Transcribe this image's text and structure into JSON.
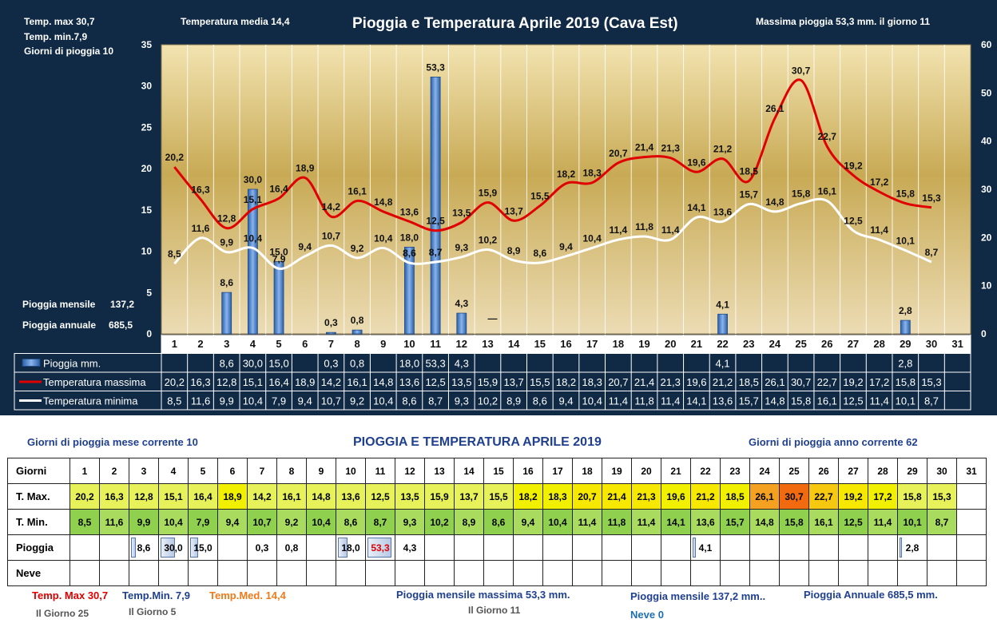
{
  "header": {
    "temp_max": "Temp. max  30,7",
    "temp_min": "Temp.  min.7,9",
    "giorni_pioggia": "Giorni  di pioggia   10",
    "temp_media": "Temperatura media  14,4",
    "title": "Pioggia e Temperatura Aprile 2019 (Cava Est)",
    "massima_pioggia": "Massima pioggia  53,3 mm.  il giorno   11",
    "pioggia_mensile_label": "Pioggia mensile",
    "pioggia_mensile_value": "137,2",
    "pioggia_annuale_label": "Pioggia annuale",
    "pioggia_annuale_value": "685,5"
  },
  "colors": {
    "panel": "#102a45",
    "plot_top": "#f2e3b0",
    "plot_mid": "#c8aa55",
    "plot_bottom": "#ead9b0",
    "tmax_line": "#e00000",
    "tmin_line": "#ffffff",
    "rain_bar": "#4f86d0"
  },
  "chart_data": {
    "type": "bar+line",
    "title": "Pioggia e Temperatura Aprile 2019 (Cava Est)",
    "categories": [
      "1",
      "2",
      "3",
      "4",
      "5",
      "6",
      "7",
      "8",
      "9",
      "10",
      "11",
      "12",
      "13",
      "14",
      "15",
      "16",
      "17",
      "18",
      "19",
      "20",
      "21",
      "22",
      "23",
      "24",
      "25",
      "26",
      "27",
      "28",
      "29",
      "30",
      "31"
    ],
    "y_left": [
      0,
      35
    ],
    "y_left_ticks": [
      "0",
      "5",
      "10",
      "15",
      "20",
      "25",
      "30",
      "35"
    ],
    "y_right": [
      0,
      60
    ],
    "y_right_ticks": [
      "0",
      "10",
      "20",
      "30",
      "40",
      "50",
      "60"
    ],
    "series": [
      {
        "name": "Pioggia mm.",
        "type": "bar",
        "axis": "right",
        "values": [
          null,
          null,
          8.6,
          30.0,
          15.0,
          null,
          0.3,
          0.8,
          null,
          18.0,
          53.3,
          4.3,
          null,
          null,
          null,
          null,
          null,
          null,
          null,
          null,
          null,
          4.1,
          null,
          null,
          null,
          null,
          null,
          null,
          2.8,
          null,
          null
        ],
        "labels": [
          "",
          "",
          "8,6",
          "30,0",
          "15,0",
          "",
          "0,3",
          "0,8",
          "",
          "18,0",
          "53,3",
          "4,3",
          "",
          "",
          "",
          "",
          "",
          "",
          "",
          "",
          "",
          "4,1",
          "",
          "",
          "",
          "",
          "",
          "",
          "2,8",
          "",
          ""
        ]
      },
      {
        "name": "Temperatura massima",
        "type": "line",
        "axis": "left",
        "values": [
          20.2,
          16.3,
          12.8,
          15.1,
          16.4,
          18.9,
          14.2,
          16.1,
          14.8,
          13.6,
          12.5,
          13.5,
          15.9,
          13.7,
          15.5,
          18.2,
          18.3,
          20.7,
          21.4,
          21.3,
          19.6,
          21.2,
          18.5,
          26.1,
          30.7,
          22.7,
          19.2,
          17.2,
          15.8,
          15.3,
          null
        ],
        "labels": [
          "20,2",
          "16,3",
          "12,8",
          "15,1",
          "16,4",
          "18,9",
          "14,2",
          "16,1",
          "14,8",
          "13,6",
          "12,5",
          "13,5",
          "15,9",
          "13,7",
          "15,5",
          "18,2",
          "18,3",
          "20,7",
          "21,4",
          "21,3",
          "19,6",
          "21,2",
          "18,5",
          "26,1",
          "30,7",
          "22,7",
          "19,2",
          "17,2",
          "15,8",
          "15,3",
          ""
        ]
      },
      {
        "name": "Temperatura minima",
        "type": "line",
        "axis": "left",
        "values": [
          8.5,
          11.6,
          9.9,
          10.4,
          7.9,
          9.4,
          10.7,
          9.2,
          10.4,
          8.6,
          8.7,
          9.3,
          10.2,
          8.9,
          8.6,
          9.4,
          10.4,
          11.4,
          11.8,
          11.4,
          14.1,
          13.6,
          15.7,
          14.8,
          15.8,
          16.1,
          12.5,
          11.4,
          10.1,
          8.7,
          null
        ],
        "labels": [
          "8,5",
          "11,6",
          "9,9",
          "10,4",
          "7,9",
          "9,4",
          "10,7",
          "9,2",
          "10,4",
          "8,6",
          "8,7",
          "9,3",
          "10,2",
          "8,9",
          "8,6",
          "9,4",
          "10,4",
          "11,4",
          "11,8",
          "11,4",
          "14,1",
          "13,6",
          "15,7",
          "14,8",
          "15,8",
          "16,1",
          "12,5",
          "11,4",
          "10,1",
          "8,7",
          ""
        ]
      }
    ],
    "table_dash_col": 13,
    "table_dash": "—"
  },
  "summary": {
    "giorni_pioggia_mese": "Giorni di pioggia  mese corrente     10",
    "title": "PIOGGIA E TEMPERATURA APRILE 2019",
    "giorni_pioggia_anno": "Giorni di pioggia anno corrente  62",
    "row_labels": {
      "giorni": "Giorni",
      "tmax": "T. Max.",
      "tmin": "T. Min.",
      "pioggia": "Pioggia",
      "neve": "Neve"
    },
    "days": [
      "1",
      "2",
      "3",
      "4",
      "5",
      "6",
      "7",
      "8",
      "9",
      "10",
      "11",
      "12",
      "13",
      "14",
      "15",
      "16",
      "17",
      "18",
      "19",
      "20",
      "21",
      "22",
      "23",
      "24",
      "25",
      "26",
      "27",
      "28",
      "29",
      "30",
      "31"
    ],
    "tmax": [
      "20,2",
      "16,3",
      "12,8",
      "15,1",
      "16,4",
      "18,9",
      "14,2",
      "16,1",
      "14,8",
      "13,6",
      "12,5",
      "13,5",
      "15,9",
      "13,7",
      "15,5",
      "18,2",
      "18,3",
      "20,7",
      "21,4",
      "21,3",
      "19,6",
      "21,2",
      "18,5",
      "26,1",
      "30,7",
      "22,7",
      "19,2",
      "17,2",
      "15,8",
      "15,3",
      ""
    ],
    "tmin": [
      "8,5",
      "11,6",
      "9,9",
      "10,4",
      "7,9",
      "9,4",
      "10,7",
      "9,2",
      "10,4",
      "8,6",
      "8,7",
      "9,3",
      "10,2",
      "8,9",
      "8,6",
      "9,4",
      "10,4",
      "11,4",
      "11,8",
      "11,4",
      "14,1",
      "13,6",
      "15,7",
      "14,8",
      "15,8",
      "16,1",
      "12,5",
      "11,4",
      "10,1",
      "8,7",
      ""
    ],
    "pioggia": [
      "",
      "",
      "8,6",
      "30,0",
      "15,0",
      "",
      "0,3",
      "0,8",
      "",
      "18,0",
      "53,3",
      "4,3",
      "",
      "",
      "",
      "",
      "",
      "",
      "",
      "",
      "",
      "4,1",
      "",
      "",
      "",
      "",
      "",
      "",
      "2,8",
      "",
      ""
    ],
    "pioggia_level": [
      0,
      0,
      0.16,
      0.56,
      0.28,
      0,
      0,
      0,
      0,
      0.34,
      1.0,
      0,
      0,
      0,
      0,
      0,
      0,
      0,
      0,
      0,
      0,
      0.08,
      0,
      0,
      0,
      0,
      0,
      0,
      0.05,
      0,
      0
    ],
    "tmax_colors": [
      "#e7f25a",
      "#e7f25a",
      "#e7f25a",
      "#e7f25a",
      "#e7f25a",
      "#f0f000",
      "#e7f25a",
      "#e7f25a",
      "#e7f25a",
      "#e7f25a",
      "#e7f25a",
      "#e7f25a",
      "#e7f25a",
      "#e7f25a",
      "#e7f25a",
      "#f0f000",
      "#f0f000",
      "#f6e800",
      "#f6e800",
      "#f6e800",
      "#f0f000",
      "#f6e800",
      "#f0f000",
      "#f4a020",
      "#f26a10",
      "#f7c810",
      "#f6e800",
      "#f0f000",
      "#e7f25a",
      "#e7f25a",
      "#ffffff"
    ],
    "tmin_color": "#8fd14f",
    "tmin_color_light": "#a8db5e",
    "footer": {
      "temp_max": "Temp. Max 30,7",
      "temp_max_day": "Il Giorno  25",
      "temp_min": "Temp.Min.  7,9",
      "temp_min_day": "Il Giorno  5",
      "temp_med": "Temp.Med. 14,4",
      "pioggia_max": "Pioggia mensile massima 53,3    mm.",
      "pioggia_max_day": "Il Giorno 11",
      "pioggia_mensile": "Pioggia mensile  137,2 mm..",
      "pioggia_annuale": "Pioggia Annuale  685,5    mm.",
      "neve": "Neve 0"
    },
    "footer_colors": {
      "max": "#e00000",
      "min": "#1f3f8f",
      "med": "#f07a1a",
      "dark": "#1f3f8f",
      "grey": "#555555",
      "neve": "#1f6fb0"
    }
  }
}
